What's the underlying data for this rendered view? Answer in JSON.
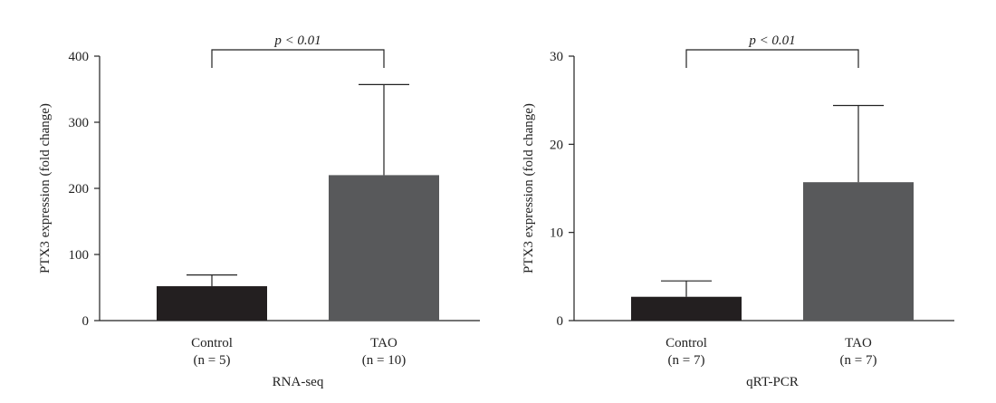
{
  "chart_data": [
    {
      "type": "bar",
      "xlabel": "RNA-seq",
      "ylabel": "PTX3 expression (fold change)",
      "ylim": [
        0,
        400
      ],
      "yticks": [
        0,
        100,
        200,
        300,
        400
      ],
      "categories": [
        "Control",
        "TAO"
      ],
      "category_n": [
        "(n = 5)",
        "(n = 10)"
      ],
      "values": [
        52,
        220
      ],
      "errors": [
        17,
        137
      ],
      "bar_colors": [
        "#231f20",
        "#58595b"
      ],
      "significance": "p < 0.01"
    },
    {
      "type": "bar",
      "xlabel": "qRT-PCR",
      "ylabel": "PTX3 expression (fold change)",
      "ylim": [
        0,
        30
      ],
      "yticks": [
        0,
        10,
        20,
        30
      ],
      "categories": [
        "Control",
        "TAO"
      ],
      "category_n": [
        "(n = 7)",
        "(n = 7)"
      ],
      "values": [
        2.7,
        15.7
      ],
      "errors": [
        1.8,
        8.7
      ],
      "bar_colors": [
        "#231f20",
        "#58595b"
      ],
      "significance": "p < 0.01"
    }
  ]
}
